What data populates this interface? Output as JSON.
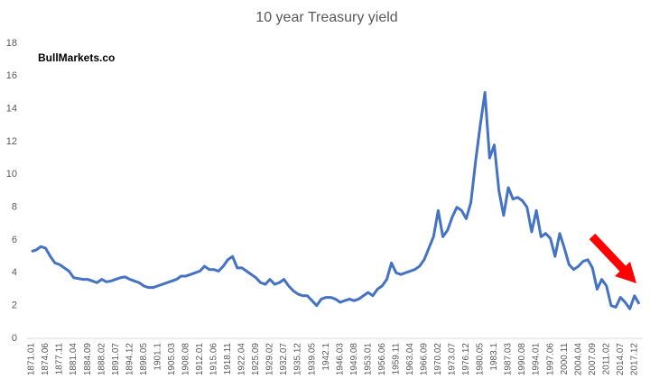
{
  "chart_data": {
    "type": "line",
    "title": "10 year Treasury yield",
    "annotation": "BullMarkets.co",
    "categories": [
      "1871.01",
      null,
      null,
      "1874.06",
      null,
      null,
      "1877.11",
      null,
      null,
      "1881.04",
      null,
      null,
      "1884.09",
      null,
      null,
      "1888.02",
      null,
      null,
      "1891.07",
      null,
      null,
      "1894.12",
      null,
      null,
      "1898.05",
      null,
      null,
      "1901.1",
      null,
      null,
      "1905.03",
      null,
      null,
      "1908.08",
      null,
      null,
      "1912.01",
      null,
      null,
      "1915.06",
      null,
      null,
      "1918.11",
      null,
      null,
      "1922.04",
      null,
      null,
      "1925.09",
      null,
      null,
      "1929.02",
      null,
      null,
      "1932.07",
      null,
      null,
      "1935.12",
      null,
      null,
      "1939.05",
      null,
      null,
      "1942.1",
      null,
      null,
      "1946.03",
      null,
      null,
      "1949.08",
      null,
      null,
      "1953.01",
      null,
      null,
      "1956.06",
      null,
      null,
      "1959.11",
      null,
      null,
      "1963.04",
      null,
      null,
      "1966.09",
      null,
      null,
      "1970.02",
      null,
      null,
      "1973.07",
      null,
      null,
      "1976.12",
      null,
      null,
      "1980.05",
      null,
      null,
      "1983.1",
      null,
      null,
      "1987.03",
      null,
      null,
      "1990.08",
      null,
      null,
      "1994.01",
      null,
      null,
      "1997.06",
      null,
      null,
      "2000.11",
      null,
      null,
      "2004.04",
      null,
      null,
      "2007.09",
      null,
      null,
      "2011.02",
      null,
      null,
      "2014.07",
      null,
      null,
      "2017.12",
      null
    ],
    "series": [
      {
        "color": "#4472c4",
        "values": [
          5.3,
          5.4,
          5.6,
          5.5,
          5.0,
          4.6,
          4.5,
          4.3,
          4.1,
          3.7,
          3.65,
          3.6,
          3.6,
          3.5,
          3.4,
          3.6,
          3.45,
          3.5,
          3.6,
          3.7,
          3.75,
          3.6,
          3.5,
          3.4,
          3.2,
          3.1,
          3.1,
          3.2,
          3.3,
          3.4,
          3.5,
          3.6,
          3.8,
          3.8,
          3.9,
          4.0,
          4.1,
          4.4,
          4.2,
          4.2,
          4.1,
          4.4,
          4.8,
          5.0,
          4.3,
          4.3,
          4.1,
          3.9,
          3.7,
          3.4,
          3.3,
          3.6,
          3.3,
          3.4,
          3.6,
          3.2,
          2.9,
          2.7,
          2.6,
          2.6,
          2.3,
          2.0,
          2.4,
          2.5,
          2.5,
          2.4,
          2.2,
          2.3,
          2.4,
          2.3,
          2.4,
          2.6,
          2.8,
          2.6,
          3.0,
          3.2,
          3.6,
          4.6,
          4.0,
          3.9,
          4.0,
          4.1,
          4.2,
          4.4,
          4.8,
          5.5,
          6.2,
          7.8,
          6.2,
          6.6,
          7.4,
          8.0,
          7.8,
          7.3,
          8.3,
          10.8,
          13.0,
          15.0,
          11.0,
          11.8,
          9.0,
          7.5,
          9.2,
          8.5,
          8.6,
          8.4,
          8.0,
          6.5,
          7.8,
          6.2,
          6.4,
          6.1,
          5.0,
          6.4,
          5.5,
          4.5,
          4.2,
          4.4,
          4.7,
          4.8,
          4.3,
          3.0,
          3.6,
          3.2,
          2.0,
          1.9,
          2.5,
          2.2,
          1.8,
          2.6,
          2.1
        ]
      }
    ],
    "ylim": [
      0,
      18
    ],
    "yticks": [
      0,
      2,
      4,
      6,
      8,
      10,
      12,
      14,
      16,
      18
    ],
    "grid": false
  }
}
